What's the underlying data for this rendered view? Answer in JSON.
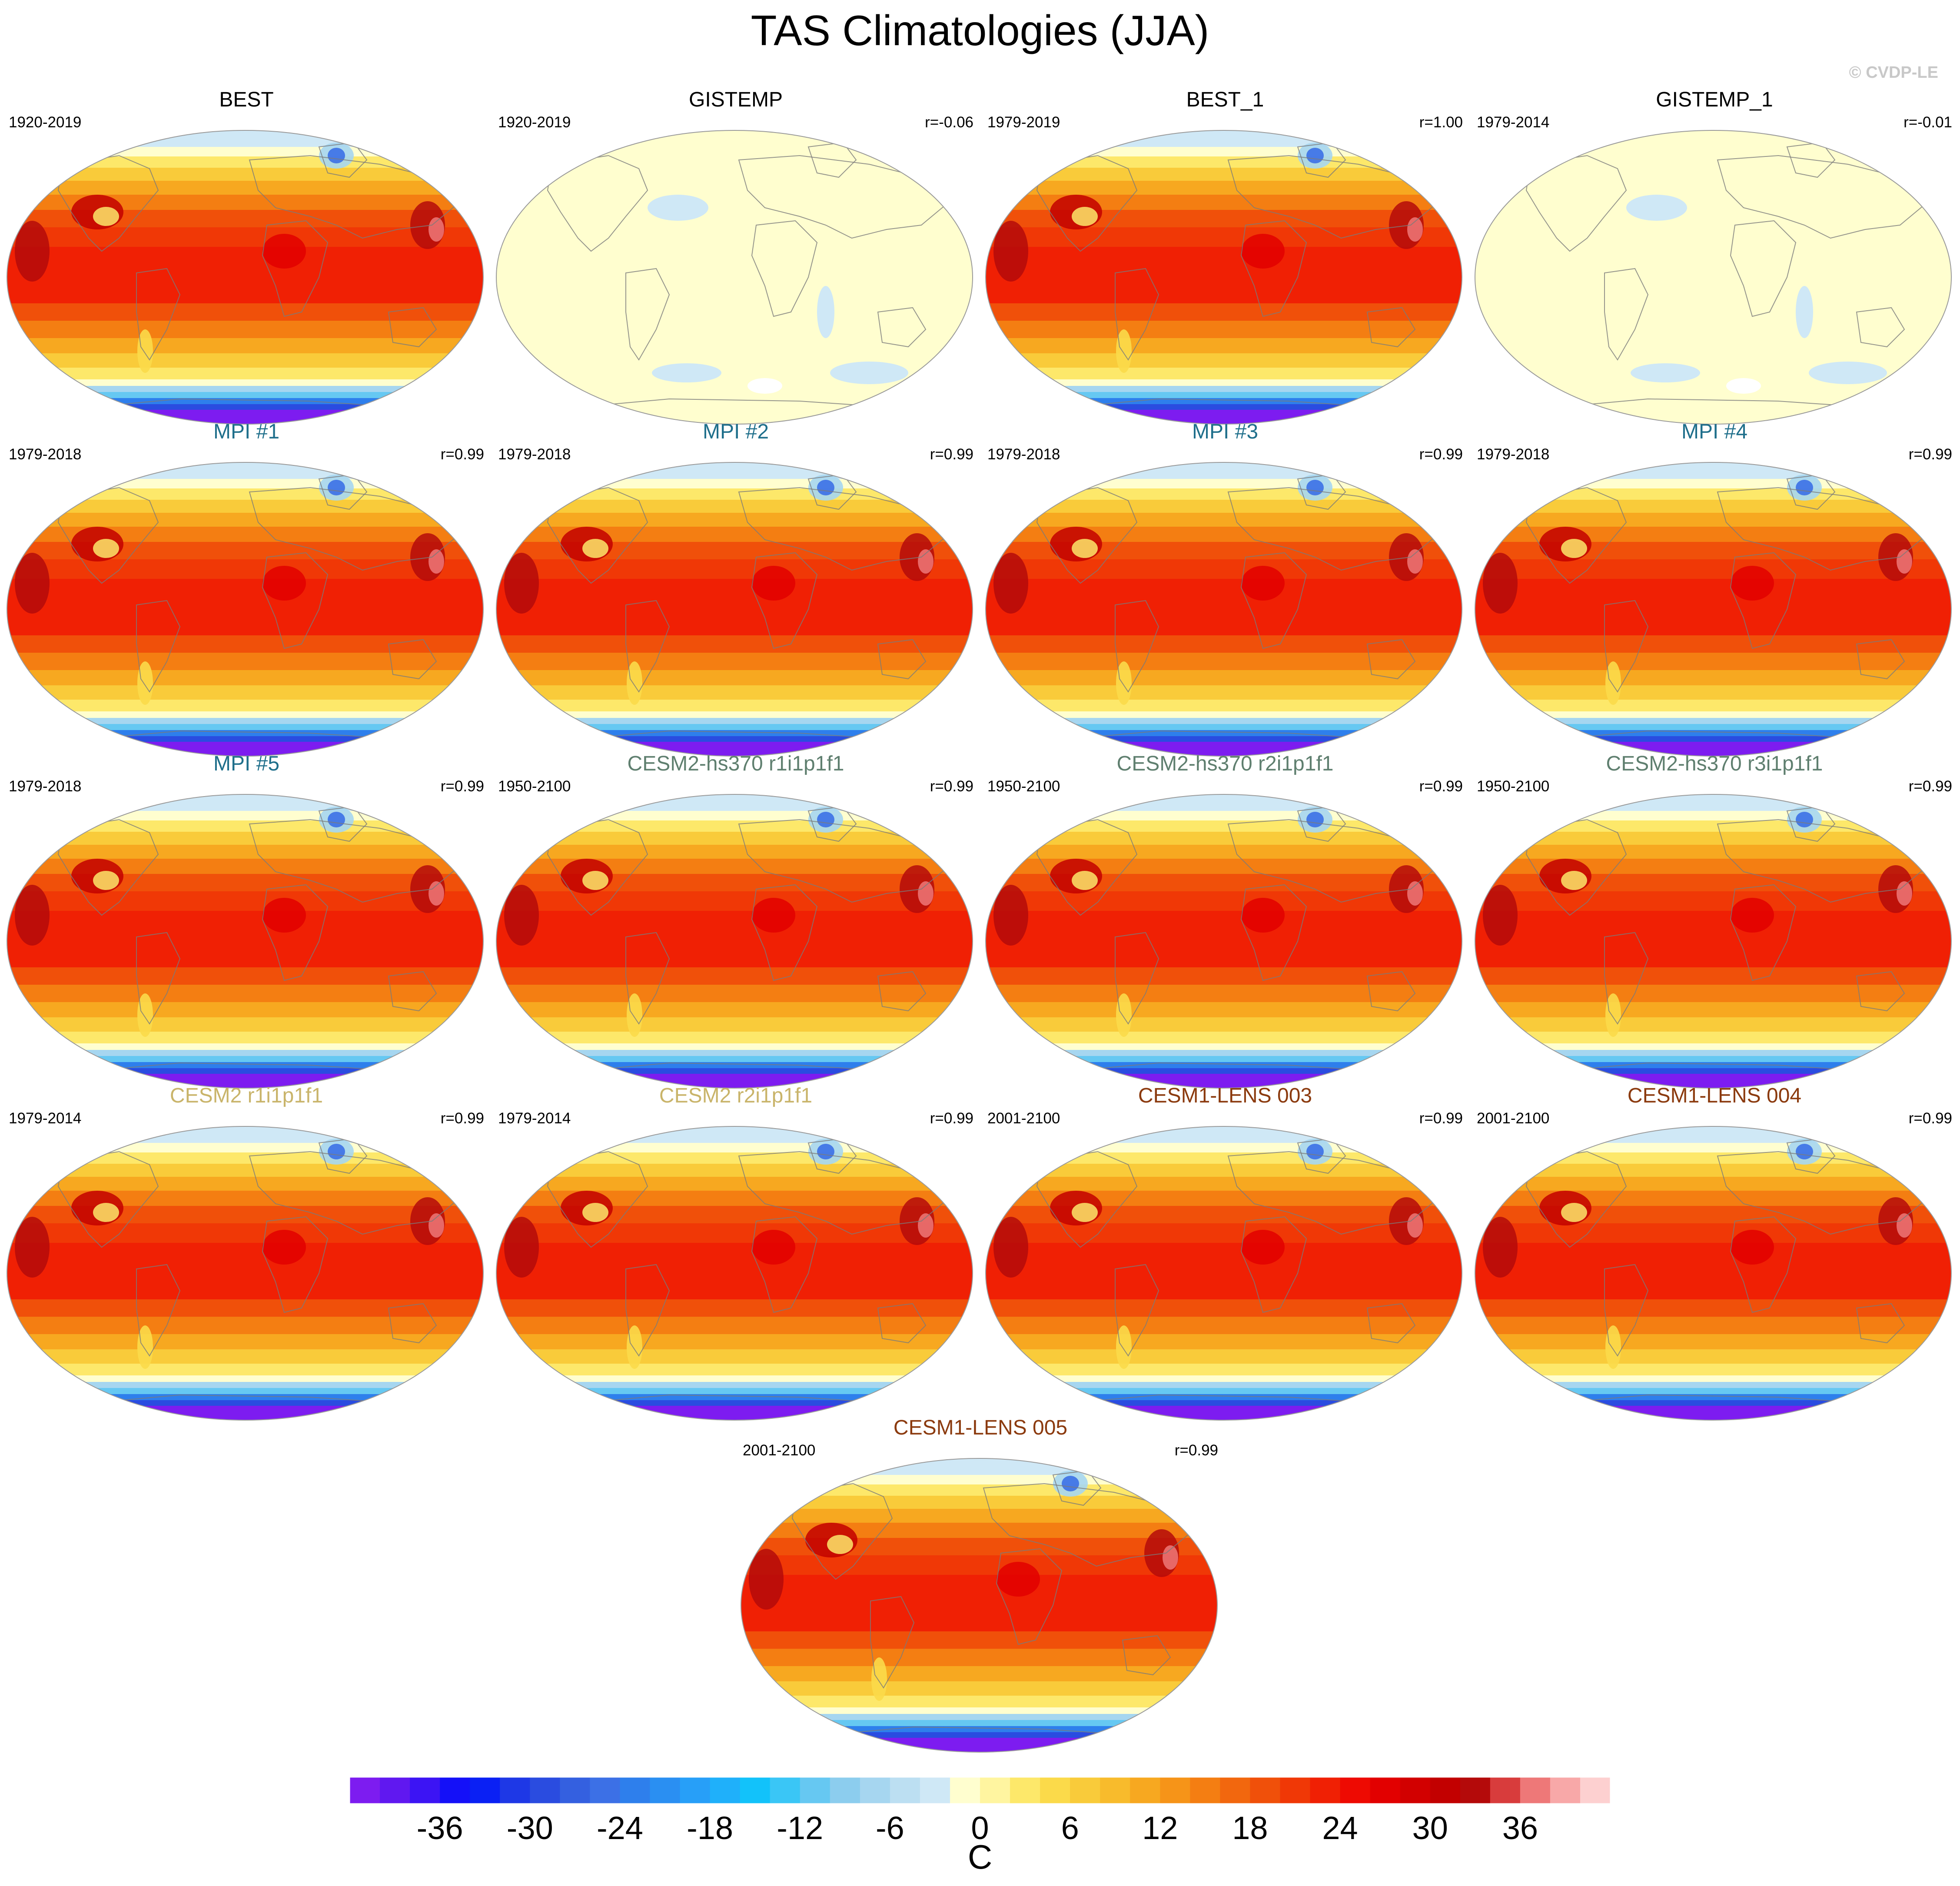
{
  "title": "TAS Climatologies (JJA)",
  "copyright": "© CVDP-LE",
  "colors": {
    "observations": "#000000",
    "mpi": "#1f6f8b",
    "cesm2_hs370": "#5f7f6f",
    "cesm2": "#c9b46a",
    "cesm1_lens": "#8b3a0e"
  },
  "chart_data": {
    "type": "heatmap",
    "projection": "Robinson (global map)",
    "variable": "TAS",
    "season": "JJA",
    "units": "C",
    "panels": [
      {
        "title": "BEST",
        "period": "1920-2019",
        "corr": "",
        "group": "observations",
        "field": "full"
      },
      {
        "title": "GISTEMP",
        "period": "1920-2019",
        "corr": "r=-0.06",
        "group": "observations",
        "field": "anomaly"
      },
      {
        "title": "BEST_1",
        "period": "1979-2019",
        "corr": "r=1.00",
        "group": "observations",
        "field": "full"
      },
      {
        "title": "GISTEMP_1",
        "period": "1979-2014",
        "corr": "r=-0.01",
        "group": "observations",
        "field": "anomaly"
      },
      {
        "title": "MPI #1",
        "period": "1979-2018",
        "corr": "r=0.99",
        "group": "mpi",
        "field": "full"
      },
      {
        "title": "MPI #2",
        "period": "1979-2018",
        "corr": "r=0.99",
        "group": "mpi",
        "field": "full"
      },
      {
        "title": "MPI #3",
        "period": "1979-2018",
        "corr": "r=0.99",
        "group": "mpi",
        "field": "full"
      },
      {
        "title": "MPI #4",
        "period": "1979-2018",
        "corr": "r=0.99",
        "group": "mpi",
        "field": "full"
      },
      {
        "title": "MPI #5",
        "period": "1979-2018",
        "corr": "r=0.99",
        "group": "mpi",
        "field": "full"
      },
      {
        "title": "CESM2-hs370 r1i1p1f1",
        "period": "1950-2100",
        "corr": "r=0.99",
        "group": "cesm2_hs370",
        "field": "full"
      },
      {
        "title": "CESM2-hs370 r2i1p1f1",
        "period": "1950-2100",
        "corr": "r=0.99",
        "group": "cesm2_hs370",
        "field": "full"
      },
      {
        "title": "CESM2-hs370 r3i1p1f1",
        "period": "1950-2100",
        "corr": "r=0.99",
        "group": "cesm2_hs370",
        "field": "full"
      },
      {
        "title": "CESM2 r1i1p1f1",
        "period": "1979-2014",
        "corr": "r=0.99",
        "group": "cesm2",
        "field": "full"
      },
      {
        "title": "CESM2 r2i1p1f1",
        "period": "1979-2014",
        "corr": "r=0.99",
        "group": "cesm2",
        "field": "full"
      },
      {
        "title": "CESM1-LENS 003",
        "period": "2001-2100",
        "corr": "r=0.99",
        "group": "cesm1_lens",
        "field": "full"
      },
      {
        "title": "CESM1-LENS 004",
        "period": "2001-2100",
        "corr": "r=0.99",
        "group": "cesm1_lens",
        "field": "full"
      },
      {
        "title": "CESM1-LENS 005",
        "period": "2001-2100",
        "corr": "r=0.99",
        "group": "cesm1_lens",
        "field": "full"
      }
    ],
    "colorbar": {
      "min": -42,
      "max": 42,
      "step": 2,
      "tick_labels": [
        "-36",
        "-30",
        "-24",
        "-18",
        "-12",
        "-6",
        "0",
        "6",
        "12",
        "18",
        "24",
        "30",
        "36"
      ],
      "tick_values": [
        -36,
        -30,
        -24,
        -18,
        -12,
        -6,
        0,
        6,
        12,
        18,
        24,
        30,
        36
      ],
      "label": "C",
      "colors": [
        "#7d1cf0",
        "#6018f0",
        "#3c14f4",
        "#1410f8",
        "#0a20f4",
        "#1e38e6",
        "#2a4ce0",
        "#3460e0",
        "#3c70e6",
        "#2e7fec",
        "#2a8ff2",
        "#279ff8",
        "#1fb0fa",
        "#12c2fa",
        "#3ac6f6",
        "#66c8f2",
        "#8ccdee",
        "#a6d6f0",
        "#bcdff2",
        "#cfe8f6",
        "#fffecf",
        "#fff5a0",
        "#fde86a",
        "#fbda4a",
        "#f9cb3a",
        "#f8bb2c",
        "#f7a820",
        "#f69418",
        "#f47e12",
        "#f2670e",
        "#f0500a",
        "#f03806",
        "#f02004",
        "#ee0a02",
        "#e20000",
        "#d20000",
        "#c20000",
        "#b40a0a",
        "#d83c3c",
        "#ee7878",
        "#f8a8a8",
        "#fdd0d0"
      ]
    }
  }
}
